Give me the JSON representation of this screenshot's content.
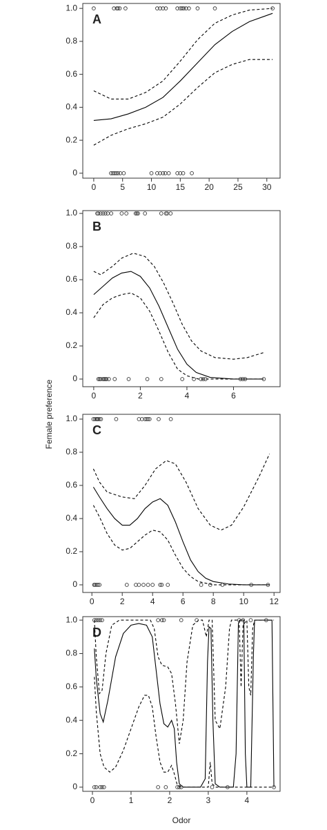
{
  "y_label": "Female preference",
  "x_label": "Odor",
  "chart_data": [
    {
      "type": "line",
      "label": "A",
      "xlim": [
        -1.9,
        32.3
      ],
      "ylim": [
        -0.03,
        1.03
      ],
      "xticks": [
        0,
        5,
        10,
        15,
        20,
        25,
        30
      ],
      "yticks": [
        0,
        0.2,
        0.4,
        0.6,
        0.8,
        {
          "value": 1,
          "label": "1.0"
        }
      ],
      "series": [
        {
          "style": "solid",
          "color": "#000000",
          "x": [
            0,
            3,
            6,
            9,
            12,
            15,
            18,
            21,
            24,
            27,
            31
          ],
          "values": [
            0.32,
            0.33,
            0.36,
            0.4,
            0.46,
            0.56,
            0.67,
            0.78,
            0.86,
            0.92,
            0.97
          ]
        },
        {
          "style": "dashed",
          "color": "#000000",
          "x": [
            0,
            3,
            6,
            9,
            12,
            15,
            18,
            21,
            24,
            27,
            31
          ],
          "values": [
            0.5,
            0.45,
            0.45,
            0.49,
            0.56,
            0.68,
            0.81,
            0.91,
            0.96,
            0.99,
            1.0
          ]
        },
        {
          "style": "dashed",
          "color": "#000000",
          "x": [
            0,
            3,
            6,
            9,
            12,
            15,
            18,
            21,
            24,
            27,
            31
          ],
          "values": [
            0.17,
            0.23,
            0.27,
            0.3,
            0.34,
            0.42,
            0.52,
            0.61,
            0.66,
            0.69,
            0.69
          ]
        }
      ],
      "points": {
        "x": [
          0,
          3.5,
          4,
          4.2,
          4.5,
          5.5,
          11,
          11.5,
          12,
          12.5,
          14.5,
          15,
          15.3,
          15.6,
          16,
          16.5,
          18,
          21,
          31,
          3,
          3.3,
          3.6,
          3.9,
          4.2,
          4.6,
          5.2,
          10,
          11,
          11.5,
          12,
          12.4,
          13,
          14.5,
          15,
          15.5,
          17
        ],
        "values": [
          1,
          1,
          1,
          1,
          1,
          1,
          1,
          1,
          1,
          1,
          1,
          1,
          1,
          1,
          1,
          1,
          1,
          1,
          1,
          0,
          0,
          0,
          0,
          0,
          0,
          0,
          0,
          0,
          0,
          0,
          0,
          0,
          0,
          0,
          0,
          0
        ]
      }
    },
    {
      "type": "line",
      "label": "B",
      "xlim": [
        -0.47,
        8.0
      ],
      "ylim": [
        -0.046,
        1.017
      ],
      "xticks": [
        0,
        2,
        4,
        6
      ],
      "yticks": [
        0,
        0.2,
        0.4,
        0.6,
        0.8,
        {
          "value": 1,
          "label": "1.0"
        }
      ],
      "series": [
        {
          "style": "solid",
          "color": "#000000",
          "x": [
            0,
            0.4,
            0.8,
            1.2,
            1.6,
            2.0,
            2.4,
            2.8,
            3.2,
            3.6,
            4.0,
            4.4,
            5,
            6,
            7.3
          ],
          "values": [
            0.51,
            0.56,
            0.61,
            0.64,
            0.65,
            0.62,
            0.55,
            0.44,
            0.31,
            0.18,
            0.09,
            0.04,
            0.01,
            0,
            0
          ]
        },
        {
          "style": "dashed",
          "color": "#000000",
          "x": [
            0,
            0.3,
            0.8,
            1.2,
            1.7,
            2.2,
            2.6,
            3,
            3.4,
            3.8,
            4.2,
            4.6,
            5.2,
            6,
            6.6,
            7.3
          ],
          "values": [
            0.65,
            0.63,
            0.68,
            0.73,
            0.76,
            0.74,
            0.68,
            0.58,
            0.46,
            0.33,
            0.23,
            0.17,
            0.13,
            0.12,
            0.13,
            0.16
          ]
        },
        {
          "style": "dashed",
          "color": "#000000",
          "x": [
            0,
            0.4,
            0.8,
            1.2,
            1.6,
            2.0,
            2.4,
            2.8,
            3.2,
            3.6,
            4.0,
            4.5,
            5,
            7.3
          ],
          "values": [
            0.37,
            0.45,
            0.49,
            0.51,
            0.52,
            0.49,
            0.41,
            0.29,
            0.16,
            0.06,
            0.02,
            0,
            0,
            0
          ]
        }
      ],
      "points": {
        "x": [
          0.15,
          0.2,
          0.3,
          0.4,
          0.5,
          0.6,
          0.75,
          1.2,
          1.4,
          1.8,
          1.85,
          1.9,
          2.2,
          2.9,
          3.1,
          3.15,
          3.3,
          0.2,
          0.25,
          0.3,
          0.4,
          0.45,
          0.5,
          0.55,
          0.65,
          0.9,
          1.5,
          2.3,
          2.9,
          3.8,
          4.3,
          4.6,
          4.7,
          4.8,
          6.3,
          6.4,
          6.5,
          7.3
        ],
        "values": [
          1,
          1,
          1,
          1,
          1,
          1,
          1,
          1,
          1,
          1,
          1,
          1,
          1,
          1,
          1,
          1,
          1,
          0,
          0,
          0,
          0,
          0,
          0,
          0,
          0,
          0,
          0,
          0,
          0,
          0,
          0,
          0,
          0,
          0,
          0,
          0,
          0,
          0
        ]
      }
    },
    {
      "type": "line",
      "label": "C",
      "xlim": [
        -0.6,
        12.4
      ],
      "ylim": [
        -0.046,
        1.029
      ],
      "xticks": [
        0,
        2,
        4,
        6,
        8,
        10,
        12
      ],
      "yticks": [
        0,
        0.2,
        0.4,
        0.6,
        0.8,
        {
          "value": 1,
          "label": "1.0"
        }
      ],
      "series": [
        {
          "style": "solid",
          "color": "#000000",
          "x": [
            0.1,
            0.5,
            1,
            1.5,
            2,
            2.5,
            3,
            3.5,
            4,
            4.5,
            5,
            5.5,
            6,
            6.5,
            7,
            7.5,
            8,
            9,
            10,
            11.7
          ],
          "values": [
            0.59,
            0.53,
            0.46,
            0.4,
            0.36,
            0.36,
            0.4,
            0.46,
            0.5,
            0.52,
            0.48,
            0.38,
            0.26,
            0.15,
            0.08,
            0.04,
            0.02,
            0.005,
            0,
            0
          ]
        },
        {
          "style": "dashed",
          "color": "#000000",
          "x": [
            0.1,
            0.5,
            1,
            2,
            2.8,
            3.5,
            4.2,
            4.9,
            5.5,
            6.2,
            7,
            7.8,
            8.5,
            9.2,
            10,
            11,
            11.7
          ],
          "values": [
            0.7,
            0.62,
            0.56,
            0.53,
            0.52,
            0.6,
            0.7,
            0.75,
            0.73,
            0.62,
            0.46,
            0.36,
            0.33,
            0.36,
            0.47,
            0.65,
            0.79
          ]
        },
        {
          "style": "dashed",
          "color": "#000000",
          "x": [
            0.1,
            0.5,
            1,
            1.5,
            2,
            2.5,
            3,
            3.5,
            4,
            4.5,
            5,
            5.5,
            6,
            6.5,
            7,
            8,
            11.7
          ],
          "values": [
            0.48,
            0.41,
            0.31,
            0.24,
            0.21,
            0.22,
            0.26,
            0.3,
            0.33,
            0.32,
            0.27,
            0.18,
            0.1,
            0.05,
            0.02,
            0,
            0
          ]
        }
      ],
      "points": {
        "x": [
          0.1,
          0.2,
          0.3,
          0.35,
          0.4,
          0.5,
          0.6,
          1.6,
          3.1,
          3.3,
          3.5,
          3.6,
          3.7,
          3.8,
          4.4,
          5.2,
          0.15,
          0.2,
          0.3,
          0.4,
          0.5,
          2.3,
          2.9,
          3.1,
          3.4,
          3.7,
          4.0,
          4.5,
          4.6,
          5.0,
          7.2,
          7.8,
          8.6,
          10.5,
          11.6
        ],
        "values": [
          1,
          1,
          1,
          1,
          1,
          1,
          1,
          1,
          1,
          1,
          1,
          1,
          1,
          1,
          1,
          1,
          0,
          0,
          0,
          0,
          0,
          0,
          0,
          0,
          0,
          0,
          0,
          0,
          0,
          0,
          0,
          0,
          0,
          0,
          0
        ]
      }
    },
    {
      "type": "line",
      "label": "D",
      "xlim": [
        -0.25,
        4.86
      ],
      "ylim": [
        -0.025,
        1.021
      ],
      "xticks": [
        0,
        1,
        2,
        3,
        4
      ],
      "yticks": [
        0,
        0.2,
        0.4,
        0.6,
        0.8,
        {
          "value": 1,
          "label": "1.0"
        }
      ],
      "series": [
        {
          "style": "solid",
          "color": "#000000",
          "x": [
            0.05,
            0.1,
            0.2,
            0.28,
            0.4,
            0.6,
            0.8,
            1.0,
            1.2,
            1.4,
            1.55,
            1.65,
            1.75,
            1.85,
            1.95,
            2.05,
            2.12,
            2.18,
            2.25,
            2.35,
            2.8,
            2.92,
            2.98,
            3.02,
            3.07,
            3.12,
            3.18,
            3.3,
            3.65,
            3.72,
            3.78,
            3.82,
            3.92,
            3.96,
            4.0,
            4.1,
            4.17,
            4.2,
            4.65,
            4.7
          ],
          "values": [
            0.83,
            0.65,
            0.44,
            0.39,
            0.52,
            0.78,
            0.92,
            0.97,
            0.98,
            0.97,
            0.9,
            0.7,
            0.5,
            0.38,
            0.36,
            0.4,
            0.35,
            0.15,
            0.02,
            0,
            0,
            0.05,
            0.75,
            0.96,
            0.95,
            0.4,
            0.02,
            0,
            0,
            0.2,
            0.98,
            1.0,
            1.0,
            0.2,
            0,
            0,
            0.8,
            1.0,
            1.0,
            0
          ]
        },
        {
          "style": "dashed",
          "color": "#000000",
          "x": [
            0.05,
            0.1,
            0.18,
            0.25,
            0.35,
            0.5,
            0.7,
            1.5,
            1.6,
            1.7,
            1.8,
            1.95,
            2.05,
            2.15,
            2.25,
            2.35,
            2.45,
            2.6,
            2.75,
            2.85,
            2.95,
            3.02,
            3.1,
            3.18,
            3.3,
            3.45,
            3.55,
            3.6,
            3.75,
            3.8,
            3.85,
            3.9,
            4.0,
            4.05,
            4.1,
            4.15,
            4.2,
            4.7
          ],
          "values": [
            1.0,
            0.78,
            0.56,
            0.58,
            0.8,
            0.97,
            1.0,
            1.0,
            0.95,
            0.78,
            0.73,
            0.72,
            0.68,
            0.5,
            0.26,
            0.4,
            0.75,
            0.97,
            1.0,
            1.0,
            0.9,
            1.0,
            1.0,
            0.4,
            0.35,
            0.6,
            0.95,
            1.0,
            1.0,
            1.0,
            0.6,
            0.97,
            1.0,
            0.6,
            0.55,
            0.95,
            1.0,
            1.0
          ]
        },
        {
          "style": "dashed",
          "color": "#000000",
          "x": [
            0.05,
            0.1,
            0.2,
            0.3,
            0.45,
            0.6,
            0.8,
            1.0,
            1.2,
            1.35,
            1.45,
            1.55,
            1.65,
            1.75,
            1.85,
            1.95,
            2.05,
            2.12,
            2.2,
            2.3,
            3.0,
            3.05,
            3.1,
            3.2,
            4.7
          ],
          "values": [
            0.66,
            0.45,
            0.2,
            0.12,
            0.09,
            0.12,
            0.22,
            0.35,
            0.48,
            0.55,
            0.55,
            0.48,
            0.3,
            0.15,
            0.09,
            0.09,
            0.13,
            0.08,
            0.01,
            0,
            0,
            0.15,
            0.02,
            0,
            0
          ]
        }
      ],
      "points": {
        "x": [
          0.05,
          0.1,
          0.15,
          0.2,
          0.25,
          1.7,
          1.8,
          1.85,
          2.3,
          2.7,
          3.8,
          3.9,
          4.1,
          4.5,
          0.05,
          0.1,
          0.2,
          0.25,
          0.3,
          1.7,
          1.9,
          2.2,
          2.25,
          2.3,
          3.1,
          3.5,
          4.7
        ],
        "values": [
          1,
          1,
          1,
          1,
          1,
          1,
          1,
          1,
          1,
          1,
          1,
          1,
          1,
          1,
          0,
          0,
          0,
          0,
          0,
          0,
          0,
          0,
          0,
          0,
          0,
          0,
          0
        ]
      }
    }
  ]
}
